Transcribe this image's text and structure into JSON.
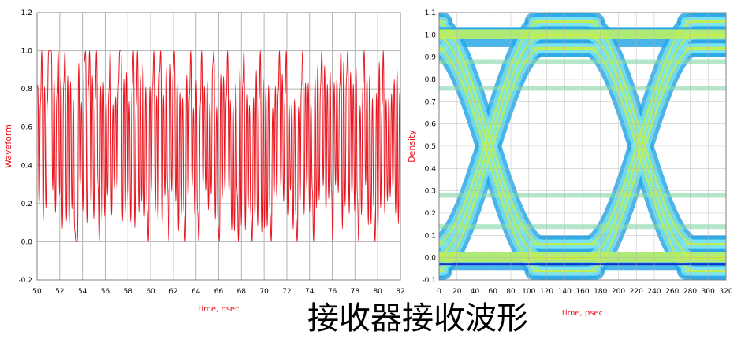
{
  "caption": "接收器接收波形",
  "colors": {
    "waveform": "#e8141e",
    "axis_label": "#e8141e",
    "grid": "#b4b4b4",
    "eye_outer": "#2aa8e8",
    "eye_inner": "#7ee6ee",
    "eye_hot": "#c8f040",
    "eye_edge": "#1030d0"
  },
  "chart_data": [
    {
      "type": "line",
      "title": "",
      "xlabel": "time, nsec",
      "ylabel": "Waveform",
      "xlim": [
        50,
        82
      ],
      "ylim": [
        -0.2,
        1.2
      ],
      "xticks": [
        "50",
        "52",
        "54",
        "56",
        "58",
        "60",
        "62",
        "64",
        "66",
        "68",
        "70",
        "72",
        "74",
        "76",
        "78",
        "80",
        "82"
      ],
      "yticks": [
        "-0.2",
        "0.0",
        "0.2",
        "0.4",
        "0.6",
        "0.8",
        "1.0",
        "1.2"
      ],
      "grid": true,
      "series": [
        {
          "bits": [
            1,
            0,
            1,
            1,
            0,
            1,
            0,
            1,
            1,
            1,
            1,
            0,
            1,
            0,
            1,
            1,
            0,
            1,
            0,
            1,
            1,
            0,
            1,
            0,
            1,
            0,
            1,
            0,
            0,
            0,
            1,
            0,
            1,
            0,
            1,
            1,
            0,
            1,
            1,
            0,
            1,
            0,
            1,
            1,
            0,
            0,
            1,
            0,
            1,
            0,
            1,
            0,
            1,
            1,
            0,
            1,
            0,
            1,
            0,
            1,
            1,
            1,
            0,
            1,
            0,
            1,
            0,
            1,
            0,
            1,
            1,
            0,
            1,
            1,
            0,
            1,
            0,
            1,
            0,
            1,
            0,
            0,
            1,
            0,
            1,
            1,
            0,
            1,
            0,
            1,
            1,
            0,
            1,
            0,
            1,
            0,
            0,
            1,
            0,
            1,
            1,
            0,
            1,
            0,
            1,
            0,
            1,
            0,
            0,
            1,
            0,
            1,
            1,
            0,
            1,
            0,
            1,
            0,
            0,
            1,
            1,
            0,
            1,
            0,
            1,
            0,
            1,
            0,
            1,
            1,
            0,
            1,
            0,
            0,
            1,
            0,
            1,
            0,
            1,
            1,
            0,
            1,
            0,
            1,
            0,
            1,
            0,
            0,
            1,
            0,
            1,
            1,
            0,
            1,
            0,
            1,
            0,
            0,
            1,
            0,
            1,
            0,
            1,
            1,
            0,
            1,
            0,
            1,
            0,
            1,
            0,
            0,
            1,
            0,
            1,
            0,
            1,
            1,
            0,
            1,
            0,
            1,
            1,
            0,
            1,
            0,
            1,
            0,
            1,
            0,
            0,
            1,
            0,
            1,
            1,
            0,
            1,
            0,
            1,
            0,
            1,
            0,
            0,
            1,
            0,
            1,
            0,
            1,
            1,
            0,
            1,
            0,
            1,
            0,
            1,
            0,
            0,
            1,
            0,
            1,
            0,
            1,
            1,
            0,
            1,
            0,
            1,
            1,
            0,
            1,
            0,
            1,
            0,
            1,
            0,
            0,
            1,
            0,
            1,
            1,
            0,
            1,
            0,
            1,
            0,
            1,
            0,
            0,
            1,
            0,
            1,
            0,
            1,
            1,
            0,
            1,
            0,
            1,
            0,
            1,
            0,
            1,
            0,
            1,
            0,
            1
          ],
          "bit_period_ns": 0.1,
          "high_level": 1.0,
          "low_level": 0.0
        }
      ]
    },
    {
      "type": "heatmap",
      "title": "",
      "xlabel": "time, psec",
      "ylabel": "Density",
      "xlim": [
        0,
        320
      ],
      "ylim": [
        -0.1,
        1.1
      ],
      "xticks": [
        "0",
        "20",
        "40",
        "60",
        "80",
        "100",
        "120",
        "140",
        "160",
        "180",
        "200",
        "220",
        "240",
        "260",
        "280",
        "300",
        "320"
      ],
      "yticks": [
        "-0.1",
        "0.0",
        "0.1",
        "0.2",
        "0.3",
        "0.4",
        "0.5",
        "0.6",
        "0.7",
        "0.8",
        "0.9",
        "1.0",
        "1.1"
      ],
      "grid": true,
      "unit_interval_ps": 170,
      "crossings_ps": [
        55,
        225
      ],
      "crossing_level": 0.5,
      "high_level": 1.0,
      "low_level": 0.0
    }
  ]
}
